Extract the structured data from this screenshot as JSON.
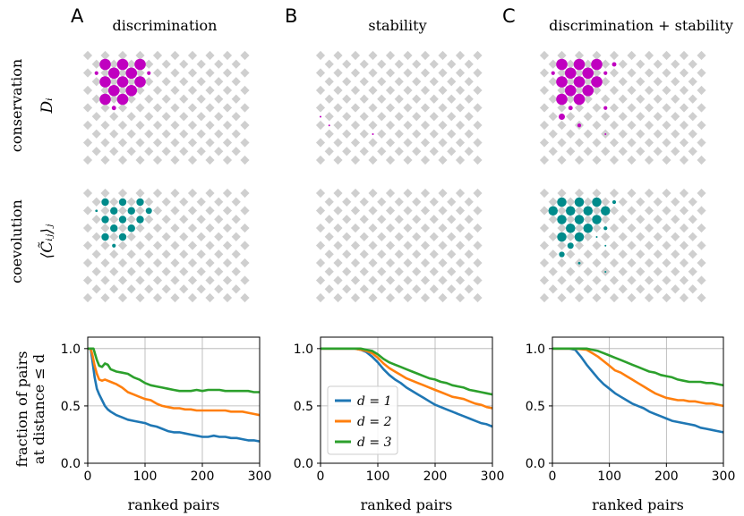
{
  "panels": [
    {
      "letter": "A",
      "title": "discrimination"
    },
    {
      "letter": "B",
      "title": "stability"
    },
    {
      "letter": "C",
      "title": "discrimination + stability"
    }
  ],
  "row_labels": {
    "conservation": "conservation",
    "conservation_symbol": "Dᵢ",
    "coevolution": "coevolution",
    "coevolution_symbol": "⟨C̃ᵢⱼ⟩ⱼ"
  },
  "colors": {
    "conservation": "#c000c0",
    "coevolution": "#008b8b",
    "grid_marker": "#cfcfcf",
    "d1": "#1f77b4",
    "d2": "#ff7f0e",
    "d3": "#2ca02c"
  },
  "lattice_markers": [
    {
      "panel": 0,
      "row": "conservation",
      "points": [
        [
          0,
          2,
          0.9
        ],
        [
          0,
          4,
          0.9
        ],
        [
          0,
          6,
          0.9
        ],
        [
          1,
          1,
          0.3
        ],
        [
          1,
          3,
          0.9
        ],
        [
          1,
          5,
          0.9
        ],
        [
          1,
          7,
          0.3
        ],
        [
          2,
          2,
          0.9
        ],
        [
          2,
          4,
          0.9
        ],
        [
          2,
          6,
          0.9
        ],
        [
          3,
          3,
          0.9
        ],
        [
          3,
          5,
          0.9
        ],
        [
          4,
          2,
          0.9
        ],
        [
          4,
          4,
          0.9
        ],
        [
          5,
          3,
          0.35
        ]
      ]
    },
    {
      "panel": 0,
      "row": "coevolution",
      "points": [
        [
          0,
          2,
          0.6
        ],
        [
          0,
          4,
          0.6
        ],
        [
          0,
          6,
          0.6
        ],
        [
          1,
          1,
          0.2
        ],
        [
          1,
          3,
          0.6
        ],
        [
          1,
          5,
          0.6
        ],
        [
          1,
          7,
          0.5
        ],
        [
          2,
          2,
          0.6
        ],
        [
          2,
          4,
          0.6
        ],
        [
          2,
          6,
          0.6
        ],
        [
          3,
          3,
          0.6
        ],
        [
          3,
          5,
          0.6
        ],
        [
          4,
          2,
          0.6
        ],
        [
          4,
          4,
          0.6
        ],
        [
          5,
          3,
          0.3
        ]
      ]
    },
    {
      "panel": 1,
      "row": "conservation",
      "points": [
        [
          6,
          0,
          0.15
        ],
        [
          7,
          1,
          0.1
        ],
        [
          8,
          6,
          0.08
        ]
      ]
    },
    {
      "panel": 1,
      "row": "coevolution",
      "points": []
    },
    {
      "panel": 2,
      "row": "conservation",
      "points": [
        [
          0,
          2,
          0.9
        ],
        [
          0,
          4,
          0.9
        ],
        [
          0,
          6,
          0.9
        ],
        [
          0,
          8,
          0.35
        ],
        [
          1,
          1,
          0.3
        ],
        [
          1,
          3,
          0.9
        ],
        [
          1,
          5,
          0.9
        ],
        [
          1,
          7,
          0.3
        ],
        [
          2,
          2,
          0.9
        ],
        [
          2,
          4,
          0.9
        ],
        [
          2,
          6,
          0.9
        ],
        [
          3,
          3,
          0.9
        ],
        [
          3,
          5,
          0.9
        ],
        [
          4,
          2,
          0.9
        ],
        [
          4,
          4,
          0.9
        ],
        [
          5,
          3,
          0.35
        ],
        [
          5,
          7,
          0.3
        ],
        [
          6,
          2,
          0.5
        ],
        [
          7,
          4,
          0.3
        ],
        [
          8,
          7,
          0.05
        ]
      ]
    },
    {
      "panel": 2,
      "row": "coevolution",
      "points": [
        [
          0,
          2,
          0.75
        ],
        [
          0,
          4,
          0.75
        ],
        [
          0,
          6,
          0.75
        ],
        [
          0,
          8,
          0.3
        ],
        [
          1,
          1,
          0.75
        ],
        [
          1,
          3,
          0.75
        ],
        [
          1,
          5,
          0.75
        ],
        [
          1,
          7,
          0.75
        ],
        [
          2,
          2,
          0.75
        ],
        [
          2,
          4,
          0.75
        ],
        [
          2,
          6,
          0.75
        ],
        [
          3,
          3,
          0.75
        ],
        [
          3,
          5,
          0.75
        ],
        [
          3,
          7,
          0.3
        ],
        [
          4,
          2,
          0.75
        ],
        [
          4,
          4,
          0.75
        ],
        [
          4,
          6,
          0.1
        ],
        [
          5,
          3,
          0.5
        ],
        [
          5,
          7,
          0.1
        ],
        [
          6,
          2,
          0.45
        ],
        [
          7,
          4,
          0.2
        ],
        [
          8,
          7,
          0.05
        ]
      ]
    }
  ],
  "chart_data": [
    {
      "type": "line",
      "panel": "A",
      "title": "discrimination",
      "xlabel": "ranked pairs",
      "ylabel": "fraction of pairs at distance ≤ d",
      "xlim": [
        0,
        300
      ],
      "ylim": [
        0,
        1.1
      ],
      "xticks": [
        "0",
        "100",
        "200",
        "300"
      ],
      "yticks": [
        "0.0",
        "0.5",
        "1.0"
      ],
      "grid": true,
      "series": [
        {
          "name": "d = 1",
          "x": [
            0,
            5,
            8,
            12,
            16,
            20,
            25,
            30,
            35,
            40,
            50,
            60,
            70,
            80,
            90,
            100,
            110,
            120,
            130,
            140,
            150,
            160,
            170,
            180,
            190,
            200,
            210,
            220,
            230,
            240,
            250,
            260,
            270,
            280,
            290,
            300
          ],
          "y": [
            1.0,
            1.0,
            0.9,
            0.75,
            0.65,
            0.6,
            0.55,
            0.5,
            0.47,
            0.45,
            0.42,
            0.4,
            0.38,
            0.37,
            0.36,
            0.35,
            0.33,
            0.32,
            0.3,
            0.28,
            0.27,
            0.27,
            0.26,
            0.25,
            0.24,
            0.23,
            0.23,
            0.24,
            0.23,
            0.23,
            0.22,
            0.22,
            0.21,
            0.2,
            0.2,
            0.19
          ]
        },
        {
          "name": "d = 2",
          "x": [
            0,
            5,
            8,
            12,
            16,
            20,
            25,
            30,
            40,
            50,
            60,
            70,
            80,
            90,
            100,
            110,
            120,
            130,
            140,
            150,
            160,
            170,
            180,
            190,
            200,
            210,
            220,
            230,
            240,
            250,
            260,
            270,
            280,
            290,
            300
          ],
          "y": [
            1.0,
            1.0,
            0.95,
            0.85,
            0.78,
            0.73,
            0.72,
            0.73,
            0.71,
            0.69,
            0.66,
            0.62,
            0.6,
            0.58,
            0.56,
            0.55,
            0.52,
            0.5,
            0.49,
            0.48,
            0.48,
            0.47,
            0.47,
            0.46,
            0.46,
            0.46,
            0.46,
            0.46,
            0.46,
            0.45,
            0.45,
            0.45,
            0.44,
            0.43,
            0.42
          ]
        },
        {
          "name": "d = 3",
          "x": [
            0,
            10,
            16,
            20,
            25,
            30,
            35,
            40,
            50,
            60,
            70,
            80,
            90,
            100,
            110,
            120,
            130,
            140,
            150,
            160,
            170,
            180,
            190,
            200,
            210,
            220,
            230,
            240,
            250,
            260,
            270,
            280,
            290,
            300
          ],
          "y": [
            1.0,
            1.0,
            0.9,
            0.85,
            0.84,
            0.87,
            0.86,
            0.82,
            0.8,
            0.79,
            0.78,
            0.75,
            0.73,
            0.7,
            0.68,
            0.67,
            0.66,
            0.65,
            0.64,
            0.63,
            0.63,
            0.63,
            0.64,
            0.63,
            0.64,
            0.64,
            0.64,
            0.63,
            0.63,
            0.63,
            0.63,
            0.63,
            0.62,
            0.62
          ]
        }
      ]
    },
    {
      "type": "line",
      "panel": "B",
      "title": "stability",
      "xlabel": "ranked pairs",
      "ylabel": "",
      "xlim": [
        0,
        300
      ],
      "ylim": [
        0,
        1.1
      ],
      "xticks": [
        "0",
        "100",
        "200",
        "300"
      ],
      "yticks": [
        "0.0",
        "0.5",
        "1.0"
      ],
      "grid": true,
      "legend": {
        "location": "lower-left",
        "entries": [
          "d = 1",
          "d = 2",
          "d = 3"
        ]
      },
      "series": [
        {
          "name": "d = 1",
          "x": [
            0,
            20,
            40,
            60,
            70,
            80,
            90,
            100,
            110,
            120,
            130,
            140,
            150,
            160,
            170,
            180,
            190,
            200,
            210,
            220,
            230,
            240,
            250,
            260,
            270,
            280,
            290,
            300
          ],
          "y": [
            1.0,
            1.0,
            1.0,
            1.0,
            0.99,
            0.97,
            0.93,
            0.88,
            0.82,
            0.77,
            0.73,
            0.7,
            0.66,
            0.63,
            0.6,
            0.57,
            0.54,
            0.51,
            0.49,
            0.47,
            0.45,
            0.43,
            0.41,
            0.39,
            0.37,
            0.35,
            0.34,
            0.32
          ]
        },
        {
          "name": "d = 2",
          "x": [
            0,
            20,
            40,
            60,
            70,
            80,
            90,
            100,
            110,
            120,
            130,
            140,
            150,
            160,
            170,
            180,
            190,
            200,
            210,
            220,
            230,
            240,
            250,
            260,
            270,
            280,
            290,
            300
          ],
          "y": [
            1.0,
            1.0,
            1.0,
            1.0,
            0.99,
            0.98,
            0.96,
            0.92,
            0.87,
            0.83,
            0.8,
            0.77,
            0.74,
            0.72,
            0.7,
            0.68,
            0.66,
            0.64,
            0.62,
            0.6,
            0.58,
            0.57,
            0.56,
            0.54,
            0.52,
            0.51,
            0.49,
            0.48
          ]
        },
        {
          "name": "d = 3",
          "x": [
            0,
            20,
            40,
            60,
            70,
            80,
            90,
            100,
            110,
            120,
            130,
            140,
            150,
            160,
            170,
            180,
            190,
            200,
            210,
            220,
            230,
            240,
            250,
            260,
            270,
            280,
            290,
            300
          ],
          "y": [
            1.0,
            1.0,
            1.0,
            1.0,
            1.0,
            0.99,
            0.98,
            0.95,
            0.91,
            0.88,
            0.86,
            0.84,
            0.82,
            0.8,
            0.78,
            0.76,
            0.74,
            0.73,
            0.71,
            0.7,
            0.68,
            0.67,
            0.66,
            0.64,
            0.63,
            0.62,
            0.61,
            0.6
          ]
        }
      ]
    },
    {
      "type": "line",
      "panel": "C",
      "title": "discrimination + stability",
      "xlabel": "ranked pairs",
      "ylabel": "",
      "xlim": [
        0,
        300
      ],
      "ylim": [
        0,
        1.1
      ],
      "xticks": [
        "0",
        "100",
        "200",
        "300"
      ],
      "yticks": [
        "0.0",
        "0.5",
        "1.0"
      ],
      "grid": true,
      "series": [
        {
          "name": "d = 1",
          "x": [
            0,
            20,
            30,
            40,
            45,
            50,
            60,
            70,
            80,
            90,
            100,
            110,
            120,
            130,
            140,
            150,
            160,
            170,
            180,
            190,
            200,
            210,
            220,
            230,
            240,
            250,
            260,
            270,
            280,
            290,
            300
          ],
          "y": [
            1.0,
            1.0,
            1.0,
            0.99,
            0.96,
            0.93,
            0.86,
            0.8,
            0.74,
            0.69,
            0.65,
            0.61,
            0.58,
            0.55,
            0.52,
            0.5,
            0.48,
            0.45,
            0.43,
            0.41,
            0.39,
            0.37,
            0.36,
            0.35,
            0.34,
            0.33,
            0.31,
            0.3,
            0.29,
            0.28,
            0.27
          ]
        },
        {
          "name": "d = 2",
          "x": [
            0,
            20,
            40,
            60,
            70,
            80,
            90,
            100,
            110,
            120,
            130,
            140,
            150,
            160,
            170,
            180,
            190,
            200,
            210,
            220,
            230,
            240,
            250,
            260,
            270,
            280,
            290,
            300
          ],
          "y": [
            1.0,
            1.0,
            1.0,
            0.99,
            0.96,
            0.93,
            0.89,
            0.85,
            0.81,
            0.79,
            0.76,
            0.73,
            0.7,
            0.67,
            0.64,
            0.61,
            0.59,
            0.57,
            0.56,
            0.55,
            0.55,
            0.54,
            0.54,
            0.53,
            0.52,
            0.52,
            0.51,
            0.5
          ]
        },
        {
          "name": "d = 3",
          "x": [
            0,
            20,
            40,
            60,
            70,
            80,
            90,
            100,
            110,
            120,
            130,
            140,
            150,
            160,
            170,
            180,
            190,
            200,
            210,
            220,
            230,
            240,
            250,
            260,
            270,
            280,
            290,
            300
          ],
          "y": [
            1.0,
            1.0,
            1.0,
            1.0,
            0.99,
            0.98,
            0.96,
            0.94,
            0.92,
            0.9,
            0.88,
            0.86,
            0.84,
            0.82,
            0.8,
            0.79,
            0.77,
            0.76,
            0.75,
            0.73,
            0.72,
            0.71,
            0.71,
            0.71,
            0.7,
            0.7,
            0.69,
            0.68
          ]
        }
      ]
    }
  ]
}
